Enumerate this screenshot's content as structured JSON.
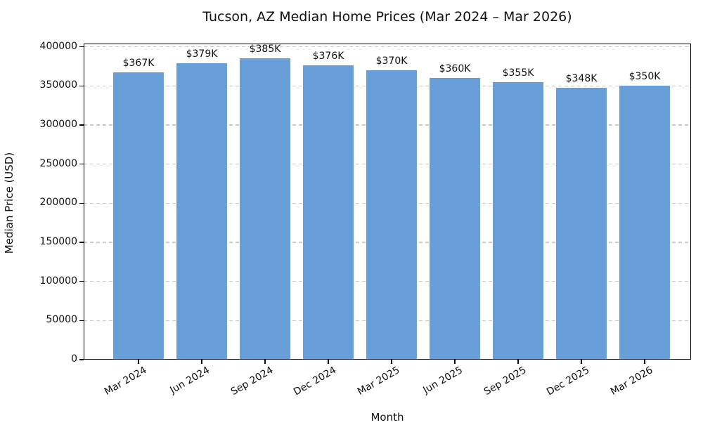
{
  "chart_data": {
    "type": "bar",
    "title": "Tucson, AZ Median Home Prices (Mar 2024 – Mar 2026)",
    "xlabel": "Month",
    "ylabel": "Median Price (USD)",
    "categories": [
      "Mar 2024",
      "Jun 2024",
      "Sep 2024",
      "Dec 2024",
      "Mar 2025",
      "Jun 2025",
      "Sep 2025",
      "Dec 2025",
      "Mar 2026"
    ],
    "values": [
      367000,
      379000,
      385000,
      376000,
      370000,
      360000,
      355000,
      348000,
      350000
    ],
    "bar_labels": [
      "$367K",
      "$379K",
      "$385K",
      "$376K",
      "$370K",
      "$360K",
      "$355K",
      "$348K",
      "$350K"
    ],
    "yticks": [
      0,
      50000,
      100000,
      150000,
      200000,
      250000,
      300000,
      350000,
      400000
    ],
    "ylim": [
      0,
      404250
    ],
    "bar_color": "#699fd8",
    "grid": "horizontal-dashed",
    "grid_color": "#c9c9c9",
    "text_color": "#111111",
    "legend": null
  }
}
